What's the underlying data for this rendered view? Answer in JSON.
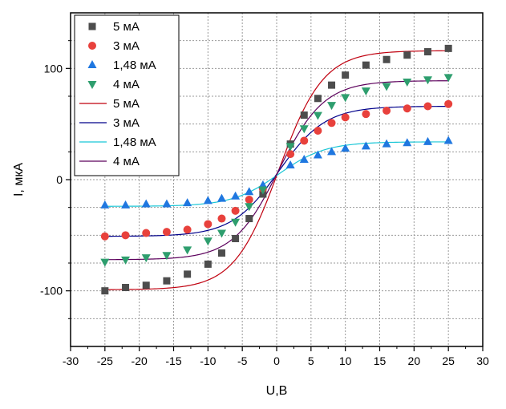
{
  "chart_data": {
    "type": "scatter",
    "xlabel": "U,B",
    "ylabel": "I, мкА",
    "xlim": [
      -30,
      30
    ],
    "ylim": [
      -150,
      150
    ],
    "xticks": [
      -30,
      -25,
      -20,
      -15,
      -10,
      -5,
      0,
      5,
      10,
      15,
      20,
      25,
      30
    ],
    "yticks": [
      -100,
      0,
      100
    ],
    "grid": true,
    "legend_position": "top-left",
    "scatter_series": [
      {
        "name": "5 мА",
        "marker": "square",
        "color": "#4d4d4d",
        "x": [
          -25,
          -22,
          -19,
          -16,
          -13,
          -10,
          -8,
          -6,
          -4,
          -2,
          2,
          4,
          6,
          8,
          10,
          13,
          16,
          19,
          22,
          25
        ],
        "y": [
          -100,
          -97,
          -95,
          -91,
          -85,
          -76,
          -66,
          -53,
          -35,
          -13,
          32,
          58,
          73,
          85,
          94,
          103,
          108,
          112,
          115,
          118
        ]
      },
      {
        "name": "3 мА",
        "marker": "circle",
        "color": "#e8413c",
        "x": [
          -25,
          -22,
          -19,
          -16,
          -13,
          -10,
          -8,
          -6,
          -4,
          -2,
          2,
          4,
          6,
          8,
          10,
          13,
          16,
          19,
          22,
          25
        ],
        "y": [
          -51,
          -50,
          -48,
          -47,
          -45,
          -40,
          -35,
          -28,
          -18,
          -8,
          23,
          35,
          44,
          51,
          56,
          59,
          62,
          64,
          66,
          68
        ]
      },
      {
        "name": "1,48 мА",
        "marker": "triangle-up",
        "color": "#1f77e0",
        "x": [
          -25,
          -22,
          -19,
          -16,
          -13,
          -10,
          -8,
          -6,
          -4,
          -2,
          2,
          4,
          6,
          8,
          10,
          13,
          16,
          19,
          22,
          25
        ],
        "y": [
          -23,
          -23,
          -22,
          -22,
          -21,
          -19,
          -17,
          -15,
          -11,
          -5,
          13,
          18,
          22,
          25,
          28,
          30,
          32,
          33,
          34,
          35
        ]
      },
      {
        "name": "4 мА",
        "marker": "triangle-down",
        "color": "#2e9e6e",
        "x": [
          -25,
          -22,
          -19,
          -16,
          -13,
          -10,
          -8,
          -6,
          -4,
          -2,
          2,
          4,
          6,
          8,
          10,
          13,
          16,
          19,
          22,
          25
        ],
        "y": [
          -74,
          -72,
          -70,
          -68,
          -63,
          -55,
          -48,
          -38,
          -24,
          -9,
          30,
          46,
          58,
          67,
          74,
          80,
          84,
          88,
          90,
          92
        ]
      }
    ],
    "line_series": [
      {
        "name": "5 мА",
        "color": "#c0000f",
        "amplitude": 116,
        "scale": 6.5
      },
      {
        "name": "3 мА",
        "color": "#00008b",
        "amplitude": 66,
        "scale": 6.8
      },
      {
        "name": "1,48 мА",
        "color": "#19c6d6",
        "amplitude": 34,
        "scale": 6.8
      },
      {
        "name": "4 мА",
        "color": "#5c005c",
        "amplitude": 89,
        "scale": 6.6
      }
    ],
    "line_center": {
      "x0": 0,
      "y_at_zero_offset": 7,
      "y_low_left": [
        -99,
        -51,
        -24,
        -72
      ]
    }
  }
}
